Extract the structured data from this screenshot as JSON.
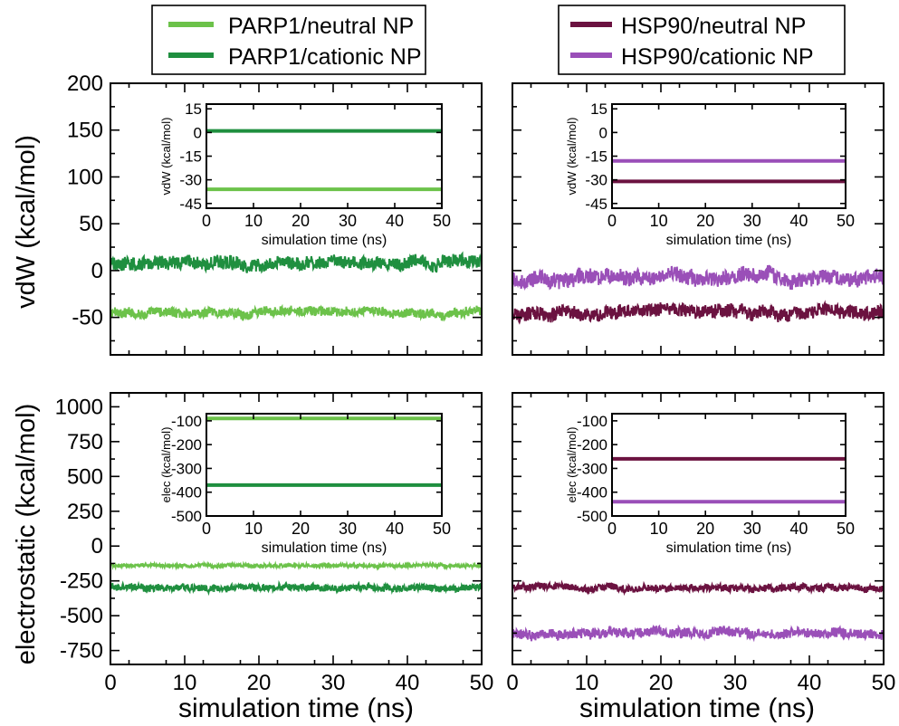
{
  "figure": {
    "legend_left": {
      "entries": [
        "PARP1/neutral NP",
        "PARP1/cationic NP"
      ]
    },
    "legend_right": {
      "entries": [
        "HSP90/neutral NP",
        "HSP90/cationic NP"
      ]
    },
    "xlabel": "simulation time (ns)",
    "row_labels": [
      "vdW (kcal/mol)",
      "electrostatic (kcal/mol)"
    ]
  },
  "colors": {
    "parp1_neutral": "#6cc24a",
    "parp1_cationic": "#1f8f3f",
    "hsp90_neutral": "#6b1240",
    "hsp90_cationic": "#9a4fb8"
  },
  "chart_data": [
    {
      "id": "vdw-parp1",
      "type": "line",
      "xlabel": "simulation time (ns)",
      "ylabel": "vdW (kcal/mol)",
      "xlim": [
        0,
        50
      ],
      "ylim": [
        -90,
        200
      ],
      "xticks": [
        0,
        10,
        20,
        30,
        40,
        50
      ],
      "yticks": [
        -50,
        0,
        50,
        100,
        150,
        200
      ],
      "series": [
        {
          "name": "PARP1/neutral NP",
          "color_key": "parp1_neutral",
          "mean": -45,
          "noise": 5
        },
        {
          "name": "PARP1/cationic NP",
          "color_key": "parp1_cationic",
          "mean": 8,
          "noise": 7
        }
      ],
      "inset": {
        "xlabel": "simulation time (ns)",
        "ylabel": "vdW (kcal/mol)",
        "xlim": [
          0,
          50
        ],
        "ylim": [
          -48,
          18
        ],
        "xticks": [
          0,
          10,
          20,
          30,
          40,
          50
        ],
        "yticks": [
          -45,
          -30,
          -15,
          0,
          15
        ],
        "series": [
          {
            "color_key": "parp1_neutral",
            "value": -36
          },
          {
            "color_key": "parp1_cationic",
            "value": 1
          }
        ]
      }
    },
    {
      "id": "vdw-hsp90",
      "type": "line",
      "xlabel": "",
      "ylabel": "",
      "xlim": [
        0,
        50
      ],
      "ylim": [
        -90,
        200
      ],
      "xticks": [
        0,
        10,
        20,
        30,
        40,
        50
      ],
      "yticks": [
        -50,
        0,
        50,
        100,
        150,
        200
      ],
      "series": [
        {
          "name": "HSP90/neutral NP",
          "color_key": "hsp90_neutral",
          "mean": -45,
          "noise": 7
        },
        {
          "name": "HSP90/cationic NP",
          "color_key": "hsp90_cationic",
          "mean": -8,
          "noise": 8
        }
      ],
      "inset": {
        "xlabel": "simulation time (ns)",
        "ylabel": "vdW (kcal/mol)",
        "xlim": [
          0,
          50
        ],
        "ylim": [
          -48,
          18
        ],
        "xticks": [
          0,
          10,
          20,
          30,
          40,
          50
        ],
        "yticks": [
          -45,
          -30,
          -15,
          0,
          15
        ],
        "series": [
          {
            "color_key": "hsp90_neutral",
            "value": -31
          },
          {
            "color_key": "hsp90_cationic",
            "value": -18
          }
        ]
      }
    },
    {
      "id": "elec-parp1",
      "type": "line",
      "xlabel": "simulation time (ns)",
      "ylabel": "electrostatic (kcal/mol)",
      "xlim": [
        0,
        50
      ],
      "ylim": [
        -850,
        1100
      ],
      "xticks": [
        0,
        10,
        20,
        30,
        40,
        50
      ],
      "yticks": [
        -750,
        -500,
        -250,
        0,
        250,
        500,
        750,
        1000
      ],
      "series": [
        {
          "name": "PARP1/neutral NP",
          "color_key": "parp1_neutral",
          "mean": -140,
          "noise": 12
        },
        {
          "name": "PARP1/cationic NP",
          "color_key": "parp1_cationic",
          "mean": -300,
          "noise": 25
        }
      ],
      "inset": {
        "xlabel": "simulation time (ns)",
        "ylabel": "elec (kcal/mol)",
        "xlim": [
          0,
          50
        ],
        "ylim": [
          -500,
          -70
        ],
        "xticks": [
          0,
          10,
          20,
          30,
          40,
          50
        ],
        "yticks": [
          -500,
          -400,
          -300,
          -200,
          -100
        ],
        "series": [
          {
            "color_key": "parp1_neutral",
            "value": -90
          },
          {
            "color_key": "parp1_cationic",
            "value": -370
          }
        ]
      }
    },
    {
      "id": "elec-hsp90",
      "type": "line",
      "xlabel": "simulation time (ns)",
      "ylabel": "",
      "xlim": [
        0,
        50
      ],
      "ylim": [
        -850,
        1100
      ],
      "xticks": [
        0,
        10,
        20,
        30,
        40,
        50
      ],
      "yticks": [
        -750,
        -500,
        -250,
        0,
        250,
        500,
        750,
        1000
      ],
      "series": [
        {
          "name": "HSP90/neutral NP",
          "color_key": "hsp90_neutral",
          "mean": -300,
          "noise": 25
        },
        {
          "name": "HSP90/cationic NP",
          "color_key": "hsp90_cationic",
          "mean": -630,
          "noise": 35
        }
      ],
      "inset": {
        "xlabel": "simulation time (ns)",
        "ylabel": "elec (kcal/mol)",
        "xlim": [
          0,
          50
        ],
        "ylim": [
          -500,
          -70
        ],
        "xticks": [
          0,
          10,
          20,
          30,
          40,
          50
        ],
        "yticks": [
          -500,
          -400,
          -300,
          -200,
          -100
        ],
        "series": [
          {
            "color_key": "hsp90_neutral",
            "value": -260
          },
          {
            "color_key": "hsp90_cationic",
            "value": -440
          }
        ]
      }
    }
  ]
}
